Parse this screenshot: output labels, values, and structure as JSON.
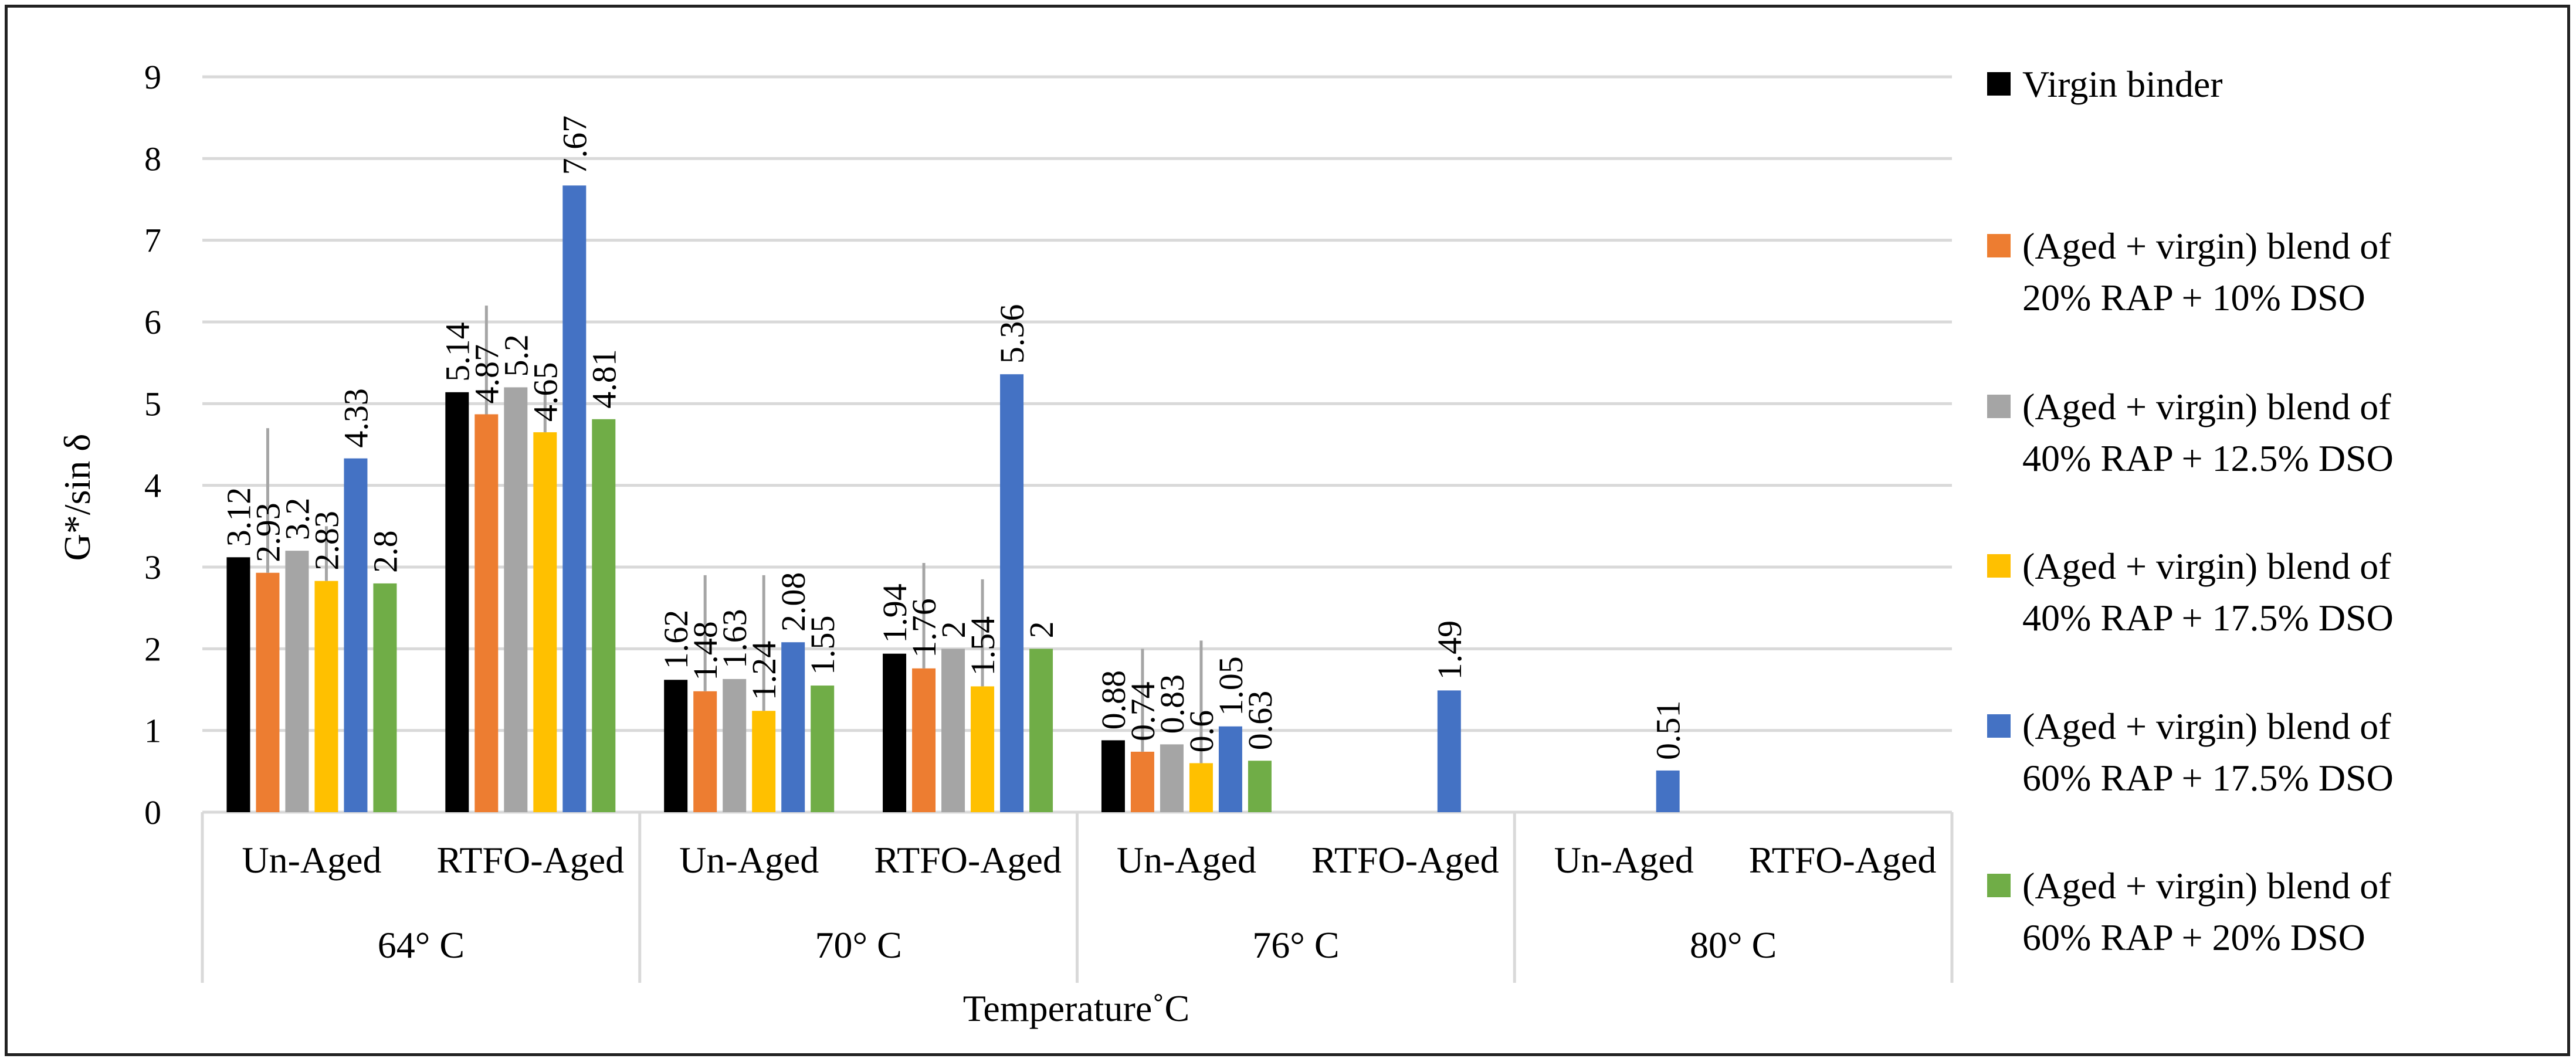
{
  "chart_data": {
    "type": "bar",
    "title": "",
    "ylabel": "G*/sin δ",
    "xlabel": "Temperature˚C",
    "ylim": [
      0,
      9
    ],
    "yticks": [
      0,
      1,
      2,
      3,
      4,
      5,
      6,
      7,
      8,
      9
    ],
    "yticks_labels": [
      "0",
      "1",
      "2",
      "3",
      "4",
      "5",
      "6",
      "7",
      "8",
      "9"
    ],
    "grid": true,
    "legend_position": "right",
    "groups": [
      {
        "label": "64° C",
        "subcategories": [
          "Un-Aged",
          "RTFO-Aged"
        ]
      },
      {
        "label": "70° C",
        "subcategories": [
          "Un-Aged",
          "RTFO-Aged"
        ]
      },
      {
        "label": "76° C",
        "subcategories": [
          "Un-Aged",
          "RTFO-Aged"
        ]
      },
      {
        "label": "80° C",
        "subcategories": [
          "Un-Aged",
          "RTFO-Aged"
        ]
      }
    ],
    "categories": [
      "Un-Aged",
      "RTFO-Aged",
      "Un-Aged",
      "RTFO-Aged",
      "Un-Aged",
      "RTFO-Aged",
      "Un-Aged",
      "RTFO-Aged"
    ],
    "series": [
      {
        "name": "Virgin binder",
        "color": "#000000",
        "values": [
          3.12,
          5.14,
          1.62,
          1.94,
          0.88,
          null,
          null,
          null
        ],
        "labels": [
          "3.12",
          "5.14",
          "1.62",
          "1.94",
          "0.88",
          null,
          null,
          null
        ]
      },
      {
        "name": "(Aged + virgin) blend of 20% RAP + 10% DSO",
        "line1": "(Aged + virgin) blend of",
        "line2": "20% RAP + 10% DSO",
        "color": "#ED7D31",
        "values": [
          2.93,
          4.87,
          1.48,
          1.76,
          0.74,
          null,
          null,
          null
        ],
        "labels": [
          "2.93",
          "4.87",
          "1.48",
          "1.76",
          "0.74",
          null,
          null,
          null
        ]
      },
      {
        "name": "(Aged + virgin) blend of 40% RAP + 12.5% DSO",
        "line1": "(Aged + virgin) blend of",
        "line2": "40% RAP + 12.5% DSO",
        "color": "#A5A5A5",
        "values": [
          3.2,
          5.2,
          1.63,
          2.0,
          0.83,
          null,
          null,
          null
        ],
        "labels": [
          "3.2",
          "5.2",
          "1.63",
          "2",
          "0.83",
          null,
          null,
          null
        ]
      },
      {
        "name": "(Aged + virgin) blend of 40% RAP + 17.5% DSO",
        "line1": "(Aged + virgin) blend of",
        "line2": "40% RAP + 17.5% DSO",
        "color": "#FFC000",
        "values": [
          2.83,
          4.65,
          1.24,
          1.54,
          0.6,
          null,
          null,
          null
        ],
        "labels": [
          "2.83",
          "4.65",
          "1.24",
          "1.54",
          "0.6",
          null,
          null,
          null
        ]
      },
      {
        "name": "(Aged + virgin) blend of 60% RAP + 17.5% DSO",
        "line1": "(Aged + virgin) blend of",
        "line2": "60% RAP + 17.5% DSO",
        "color": "#4472C4",
        "values": [
          4.33,
          7.67,
          2.08,
          5.36,
          1.05,
          1.49,
          0.51,
          null
        ],
        "labels": [
          "4.33",
          "7.67",
          "2.08",
          "5.36",
          "1.05",
          "1.49",
          "0.51",
          null
        ]
      },
      {
        "name": "(Aged + virgin) blend of 60% RAP + 20% DSO",
        "line1": "(Aged + virgin) blend of",
        "line2": "60% RAP + 20% DSO",
        "color": "#70AD47",
        "values": [
          2.8,
          4.81,
          1.55,
          2.0,
          0.63,
          null,
          null,
          null
        ],
        "labels": [
          "2.8",
          "4.81",
          "1.55",
          "2",
          "0.63",
          null,
          null,
          null
        ]
      }
    ],
    "error_bars": [
      {
        "series": "(Aged + virgin) blend of 20% RAP + 10% DSO",
        "category_index": 0,
        "top": 4.7
      },
      {
        "series": "(Aged + virgin) blend of 20% RAP + 10% DSO",
        "category_index": 1,
        "top": 6.2
      },
      {
        "series": "(Aged + virgin) blend of 40% RAP + 17.5% DSO",
        "category_index": 0,
        "top": 3.5
      },
      {
        "series": "(Aged + virgin) blend of 40% RAP + 17.5% DSO",
        "category_index": 1,
        "top": 5.15
      },
      {
        "series": "(Aged + virgin) blend of 20% RAP + 10% DSO",
        "category_index": 2,
        "top": 2.9
      },
      {
        "series": "(Aged + virgin) blend of 40% RAP + 17.5% DSO",
        "category_index": 2,
        "top": 2.9
      },
      {
        "series": "(Aged + virgin) blend of 20% RAP + 10% DSO",
        "category_index": 3,
        "top": 3.05
      },
      {
        "series": "(Aged + virgin) blend of 40% RAP + 17.5% DSO",
        "category_index": 3,
        "top": 2.85
      },
      {
        "series": "(Aged + virgin) blend of 20% RAP + 10% DSO",
        "category_index": 4,
        "top": 2.0
      },
      {
        "series": "(Aged + virgin) blend of 40% RAP + 17.5% DSO",
        "category_index": 4,
        "top": 2.1
      }
    ]
  }
}
